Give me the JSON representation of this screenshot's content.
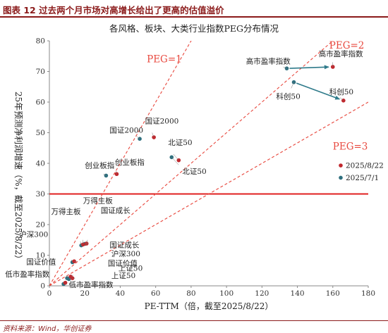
{
  "header": {
    "title": "图表 12    过去两个月市场对高增长给出了更高的估值溢价"
  },
  "source": "资料来源：Wind，华创证券",
  "chart_data": {
    "type": "scatter",
    "title": "各风格、板块、大类行业指数PEG分布情况",
    "xlabel": "PE-TTM（倍，截至2025/8/22）",
    "ylabel": "25年预测净利润增速（%，截至2025/8/22）",
    "xlim": [
      0,
      180
    ],
    "ylim": [
      0,
      80
    ],
    "xticks": [
      0,
      20,
      40,
      60,
      80,
      100,
      120,
      140,
      160,
      180
    ],
    "yticks": [
      0,
      10,
      20,
      30,
      40,
      50,
      60,
      70,
      80
    ],
    "grid": false,
    "legend_position": "right",
    "hline": 30,
    "colors": {
      "new": "#C0272D",
      "old": "#2E6F7E",
      "peg": "#E8483E",
      "hline": "#E02020",
      "arrow": "#2E7A8A"
    },
    "peg_lines": [
      {
        "label": "PEG=1",
        "slope": 1
      },
      {
        "label": "PEG=2",
        "slope": 0.5
      },
      {
        "label": "PEG=3",
        "slope": 0.3333
      }
    ],
    "series": [
      {
        "name": "2025/8/22",
        "points": [
          {
            "label": "高市盈率指数",
            "x": 160,
            "y": 71.5
          },
          {
            "label": "科创50",
            "x": 166,
            "y": 60.5
          },
          {
            "label": "国证2000",
            "x": 59,
            "y": 48.5
          },
          {
            "label": "北证50",
            "x": 73,
            "y": 41
          },
          {
            "label": "创业板指",
            "x": 38,
            "y": 36.5
          },
          {
            "label": "万得主板",
            "x": 19,
            "y": 13.5
          },
          {
            "label": "国证成长",
            "x": 21,
            "y": 13.8
          },
          {
            "label": "沪深300",
            "x": 14,
            "y": 8
          },
          {
            "label": "国证价值",
            "x": 12,
            "y": 3
          },
          {
            "label": "上证50",
            "x": 13,
            "y": 2.5
          },
          {
            "label": "低市盈率指数",
            "x": 9,
            "y": 1
          }
        ]
      },
      {
        "name": "2025/7/1",
        "points": [
          {
            "label": "高市盈率指数",
            "x": 134,
            "y": 71
          },
          {
            "label": "科创50",
            "x": 138,
            "y": 66.5
          },
          {
            "label": "国证2000",
            "x": 51,
            "y": 48
          },
          {
            "label": "北证50",
            "x": 69,
            "y": 42
          },
          {
            "label": "创业板指",
            "x": 32,
            "y": 36
          },
          {
            "label": "万得主板",
            "x": 18,
            "y": 13.2
          },
          {
            "label": "国证成长",
            "x": 20,
            "y": 13.7
          },
          {
            "label": "沪深300",
            "x": 13,
            "y": 7.7
          },
          {
            "label": "国证价值",
            "x": 10,
            "y": 2.5
          },
          {
            "label": "上证50",
            "x": 11,
            "y": 2.2
          },
          {
            "label": "低市盈率指数",
            "x": 8,
            "y": 0.6
          }
        ]
      }
    ]
  }
}
